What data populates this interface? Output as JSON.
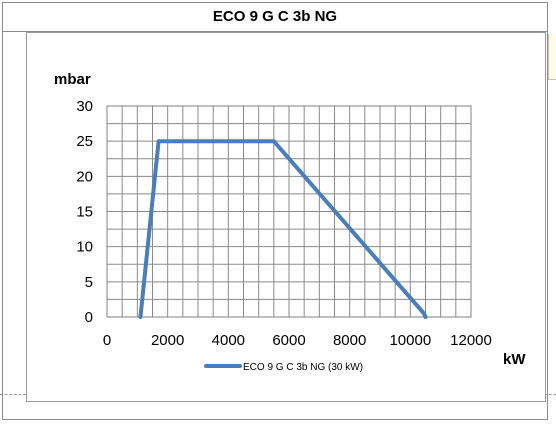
{
  "chart_data": {
    "type": "line",
    "title": "ECO 9 G C 3b NG",
    "ylabel": "mbar",
    "xlabel": "kW",
    "xlim": [
      0,
      12000
    ],
    "ylim": [
      0,
      30
    ],
    "x_ticks": [
      "0",
      "2000",
      "4000",
      "6000",
      "8000",
      "10000",
      "12000"
    ],
    "y_ticks": [
      "0",
      "5",
      "10",
      "15",
      "20",
      "25",
      "30"
    ],
    "x_tick_values": [
      0,
      2000,
      4000,
      6000,
      8000,
      10000,
      12000
    ],
    "y_tick_values": [
      0,
      5,
      10,
      15,
      20,
      25,
      30
    ],
    "x_minor_step": 500,
    "y_minor_step": 2.5,
    "grid": true,
    "legend_position": "bottom",
    "series": [
      {
        "name": "ECO 9  G C 3b NG (30 kW)",
        "color": "#4a7ebb",
        "points": [
          [
            1100,
            0
          ],
          [
            1150,
            2
          ],
          [
            1700,
            25
          ],
          [
            5500,
            25
          ],
          [
            10450,
            0.5
          ],
          [
            10500,
            0
          ]
        ]
      }
    ]
  }
}
